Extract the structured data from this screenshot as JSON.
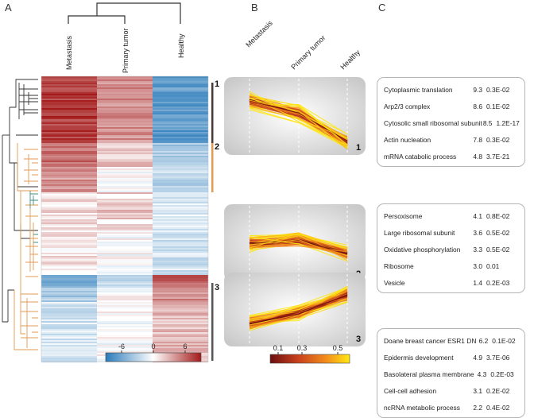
{
  "panels": {
    "a": "A",
    "b": "B",
    "c": "C"
  },
  "heatmap": {
    "columns": [
      "Metastasis",
      "Primary tumor",
      "Healthy"
    ],
    "colorbar": {
      "ticks": [
        "-6",
        "0",
        "6"
      ],
      "range": [
        -10,
        10
      ]
    },
    "clusters": [
      "1",
      "2",
      "3"
    ]
  },
  "profiles": {
    "columns": [
      "Metastasis",
      "Primary tumor",
      "Healthy"
    ],
    "colorbar": {
      "ticks": [
        "0.1",
        "0.3",
        "0.5"
      ]
    },
    "clusters": [
      {
        "label": "1",
        "trend": [
          0.75,
          0.55,
          0.12
        ]
      },
      {
        "label": "2",
        "trend": [
          0.5,
          0.55,
          0.35
        ]
      },
      {
        "label": "3",
        "trend": [
          0.3,
          0.45,
          0.75
        ]
      }
    ]
  },
  "enrichment": [
    {
      "cluster": "1",
      "terms": [
        {
          "name": "Cytoplasmic translation",
          "score": "9.3",
          "p": "0.3E-02"
        },
        {
          "name": "Arp2/3 complex",
          "score": "8.6",
          "p": "0.1E-02"
        },
        {
          "name": "Cytosolic small ribosomal subunit",
          "score": "8.5",
          "p": "1.2E-17"
        },
        {
          "name": "Actin nucleation",
          "score": "7.8",
          "p": "0.3E-02"
        },
        {
          "name": "mRNA catabolic process",
          "score": "4.8",
          "p": "3.7E-21"
        }
      ]
    },
    {
      "cluster": "2",
      "terms": [
        {
          "name": "Persoxisome",
          "score": "4.1",
          "p": "0.8E-02"
        },
        {
          "name": "Large ribosomal subunit",
          "score": "3.6",
          "p": "0.5E-02"
        },
        {
          "name": "Oxidative phosphorylation",
          "score": "3.3",
          "p": "0.5E-02"
        },
        {
          "name": "Ribosome",
          "score": "3.0",
          "p": "0.01"
        },
        {
          "name": "Vesicle",
          "score": "1.4",
          "p": "0.2E-03"
        }
      ]
    },
    {
      "cluster": "3",
      "terms": [
        {
          "name": "Doane breast cancer ESR1 DN",
          "score": "6.2",
          "p": "0.1E-02"
        },
        {
          "name": "Epidermis development",
          "score": "4.9",
          "p": "3.7E-06"
        },
        {
          "name": "Basolateral plasma membrane",
          "score": "4.3",
          "p": "0.2E-03"
        },
        {
          "name": "Cell-cell adhesion",
          "score": "3.1",
          "p": "0.2E-02"
        },
        {
          "name": "ncRNA metabolic process",
          "score": "2.2",
          "p": "0.4E-02"
        }
      ]
    }
  ],
  "colors": {
    "heat_neg": "#2b7bba",
    "heat_mid": "#ffffff",
    "heat_pos": "#a41a1a",
    "dendro_dark": "#333333",
    "dendro_orange": "#e39a52",
    "dendro_teal": "#3f8f86",
    "bar_cluster1": "#4a3a3a",
    "bar_cluster2": "#e39a52",
    "bar_cluster3": "#555555"
  }
}
